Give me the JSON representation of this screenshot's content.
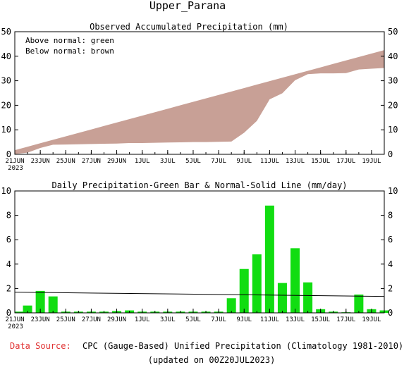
{
  "title": "Upper_Parana",
  "footer": {
    "source_label": "Data Source:",
    "source_text": "CPC (Gauge-Based) Unified Precipitation (Climatology 1981-2010)",
    "updated": "(updated on 00Z20JUL2023)"
  },
  "colors": {
    "fill_brown": "#c8a096",
    "bar_green": "#11dd11",
    "source_red": "#e03030"
  },
  "chart_data": [
    {
      "type": "area",
      "title": "Observed Accumulated Precipitation (mm)",
      "annotations": [
        "Above normal: green",
        "Below normal: brown"
      ],
      "ylim": [
        0,
        50
      ],
      "yticks": [
        0,
        10,
        20,
        30,
        40,
        50
      ],
      "xlim": [
        0,
        29
      ],
      "xticks": [
        {
          "x": 0,
          "label": "21JUN",
          "sub": "2023"
        },
        {
          "x": 2,
          "label": "23JUN"
        },
        {
          "x": 4,
          "label": "25JUN"
        },
        {
          "x": 6,
          "label": "27JUN"
        },
        {
          "x": 8,
          "label": "29JUN"
        },
        {
          "x": 10,
          "label": "1JUL"
        },
        {
          "x": 12,
          "label": "3JUL"
        },
        {
          "x": 14,
          "label": "5JUL"
        },
        {
          "x": 16,
          "label": "7JUL"
        },
        {
          "x": 18,
          "label": "9JUL"
        },
        {
          "x": 20,
          "label": "11JUL"
        },
        {
          "x": 22,
          "label": "13JUL"
        },
        {
          "x": 24,
          "label": "15JUL"
        },
        {
          "x": 26,
          "label": "17JUL"
        },
        {
          "x": 28,
          "label": "19JUL"
        }
      ],
      "series": [
        {
          "name": "Observed",
          "x": [
            0,
            1,
            2,
            3,
            4,
            5,
            6,
            7,
            8,
            9,
            10,
            11,
            12,
            13,
            14,
            15,
            16,
            17,
            18,
            19,
            20,
            21,
            22,
            23,
            24,
            25,
            26,
            27,
            28,
            29
          ],
          "values": [
            0.1,
            0.7,
            2.6,
            3.9,
            4.0,
            4.1,
            4.2,
            4.3,
            4.4,
            4.6,
            4.6,
            4.7,
            4.8,
            4.9,
            5.0,
            5.0,
            5.1,
            5.2,
            8.8,
            13.6,
            22.4,
            24.9,
            30.2,
            32.7,
            33.0,
            33.0,
            33.1,
            34.6,
            34.9,
            35.2
          ]
        },
        {
          "name": "Normal",
          "x": [
            0,
            29
          ],
          "values": [
            1.7,
            42.5
          ]
        }
      ]
    },
    {
      "type": "bar",
      "title": "Daily Precipitation-Green Bar & Normal-Solid Line (mm/day)",
      "ylim": [
        0,
        10
      ],
      "yticks": [
        0,
        2,
        4,
        6,
        8,
        10
      ],
      "xlim": [
        0,
        29
      ],
      "xticks": [
        {
          "x": 0,
          "label": "21JUN",
          "sub": "2023"
        },
        {
          "x": 2,
          "label": "23JUN"
        },
        {
          "x": 4,
          "label": "25JUN"
        },
        {
          "x": 6,
          "label": "27JUN"
        },
        {
          "x": 8,
          "label": "29JUN"
        },
        {
          "x": 10,
          "label": "1JUL"
        },
        {
          "x": 12,
          "label": "3JUL"
        },
        {
          "x": 14,
          "label": "5JUL"
        },
        {
          "x": 16,
          "label": "7JUL"
        },
        {
          "x": 18,
          "label": "9JUL"
        },
        {
          "x": 20,
          "label": "11JUL"
        },
        {
          "x": 22,
          "label": "13JUL"
        },
        {
          "x": 24,
          "label": "15JUL"
        },
        {
          "x": 26,
          "label": "17JUL"
        },
        {
          "x": 28,
          "label": "19JUL"
        }
      ],
      "series": [
        {
          "name": "Daily",
          "x": [
            0,
            1,
            2,
            3,
            4,
            5,
            6,
            7,
            8,
            9,
            10,
            11,
            12,
            13,
            14,
            15,
            16,
            17,
            18,
            19,
            20,
            21,
            22,
            23,
            24,
            25,
            26,
            27,
            28,
            29
          ],
          "values": [
            0.1,
            0.6,
            1.8,
            1.35,
            0.1,
            0.1,
            0.1,
            0.1,
            0.15,
            0.2,
            0.1,
            0.1,
            0.1,
            0.1,
            0.1,
            0.1,
            0.1,
            1.2,
            3.6,
            4.8,
            8.8,
            2.45,
            5.3,
            2.5,
            0.3,
            0.1,
            0.05,
            1.5,
            0.3,
            0.2
          ]
        },
        {
          "name": "Normal",
          "x": [
            0,
            29
          ],
          "values": [
            1.7,
            1.35
          ]
        }
      ]
    }
  ]
}
